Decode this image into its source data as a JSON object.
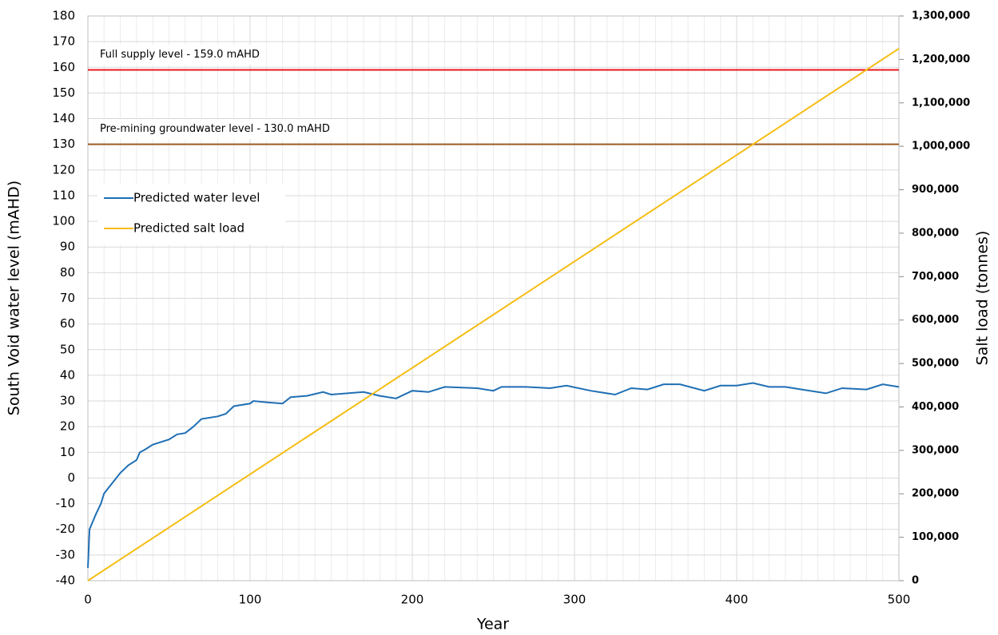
{
  "chart_data": {
    "type": "line",
    "xlabel": "Year",
    "ylabel": "South Void water level (mAHD)",
    "y2label": "Salt load (tonnes)",
    "xlim": [
      0,
      500
    ],
    "xticks": [
      0,
      100,
      200,
      300,
      400,
      500
    ],
    "ylim": [
      -40,
      180
    ],
    "yticks": [
      -40,
      -30,
      -20,
      -10,
      0,
      10,
      20,
      30,
      40,
      50,
      60,
      70,
      80,
      90,
      100,
      110,
      120,
      130,
      140,
      150,
      160,
      170,
      180
    ],
    "y2lim": [
      0,
      1300000
    ],
    "y2ticks": [
      0,
      {
        "value": 100000,
        "label": "100,000"
      },
      {
        "value": 200000,
        "label": "200,000"
      },
      {
        "value": 300000,
        "label": "300,000"
      },
      {
        "value": 400000,
        "label": "400,000"
      },
      {
        "value": 500000,
        "label": "500,000"
      },
      {
        "value": 600000,
        "label": "600,000"
      },
      {
        "value": 700000,
        "label": "700,000"
      },
      {
        "value": 800000,
        "label": "800,000"
      },
      {
        "value": 900000,
        "label": "900,000"
      },
      {
        "value": 1000000,
        "label": "1,000,000"
      },
      {
        "value": 1100000,
        "label": "1,100,000"
      },
      {
        "value": 1200000,
        "label": "1,200,000"
      },
      {
        "value": 1300000,
        "label": "1,300,000"
      }
    ],
    "grid": true,
    "legend": "upper left",
    "reference_lines": [
      {
        "label": "Full supply level - 159.0 mAHD",
        "value": 159,
        "color": "#e8171d"
      },
      {
        "label": "Pre-mining groundwater level - 130.0 mAHD",
        "value": 130,
        "color": "#9b5a22"
      }
    ],
    "series": [
      {
        "name": "Predicted water level",
        "color": "#1f6fb4",
        "x": [
          0,
          1,
          3,
          5,
          8,
          10,
          15,
          20,
          25,
          30,
          32,
          35,
          40,
          50,
          55,
          60,
          65,
          70,
          80,
          85,
          90,
          100,
          102,
          110,
          120,
          125,
          135,
          145,
          150,
          160,
          170,
          180,
          190,
          200,
          210,
          220,
          240,
          250,
          255,
          270,
          285,
          295,
          310,
          325,
          335,
          345,
          355,
          365,
          380,
          390,
          400,
          410,
          420,
          430,
          440,
          455,
          465,
          480,
          490,
          500
        ],
        "values": [
          -35,
          -20,
          -17,
          -14,
          -10,
          -6,
          -2,
          2,
          5,
          7,
          10,
          11,
          13,
          15,
          17,
          17.5,
          20,
          23,
          24,
          25,
          28,
          29,
          30,
          29.5,
          29,
          31.5,
          32,
          33.5,
          32.5,
          33,
          33.5,
          32,
          31,
          34,
          33.5,
          35.5,
          35,
          34,
          35.5,
          35.5,
          35,
          36,
          34,
          32.5,
          35,
          34.5,
          36.5,
          36.5,
          34,
          36,
          36,
          37,
          35.5,
          35.5,
          34.5,
          33,
          35,
          34.5,
          36.5,
          35.5
        ]
      },
      {
        "name": "Predicted salt load",
        "color": "#f5bd14",
        "axis": "y2",
        "x": [
          0,
          500
        ],
        "values": [
          0,
          1225000
        ]
      }
    ]
  }
}
